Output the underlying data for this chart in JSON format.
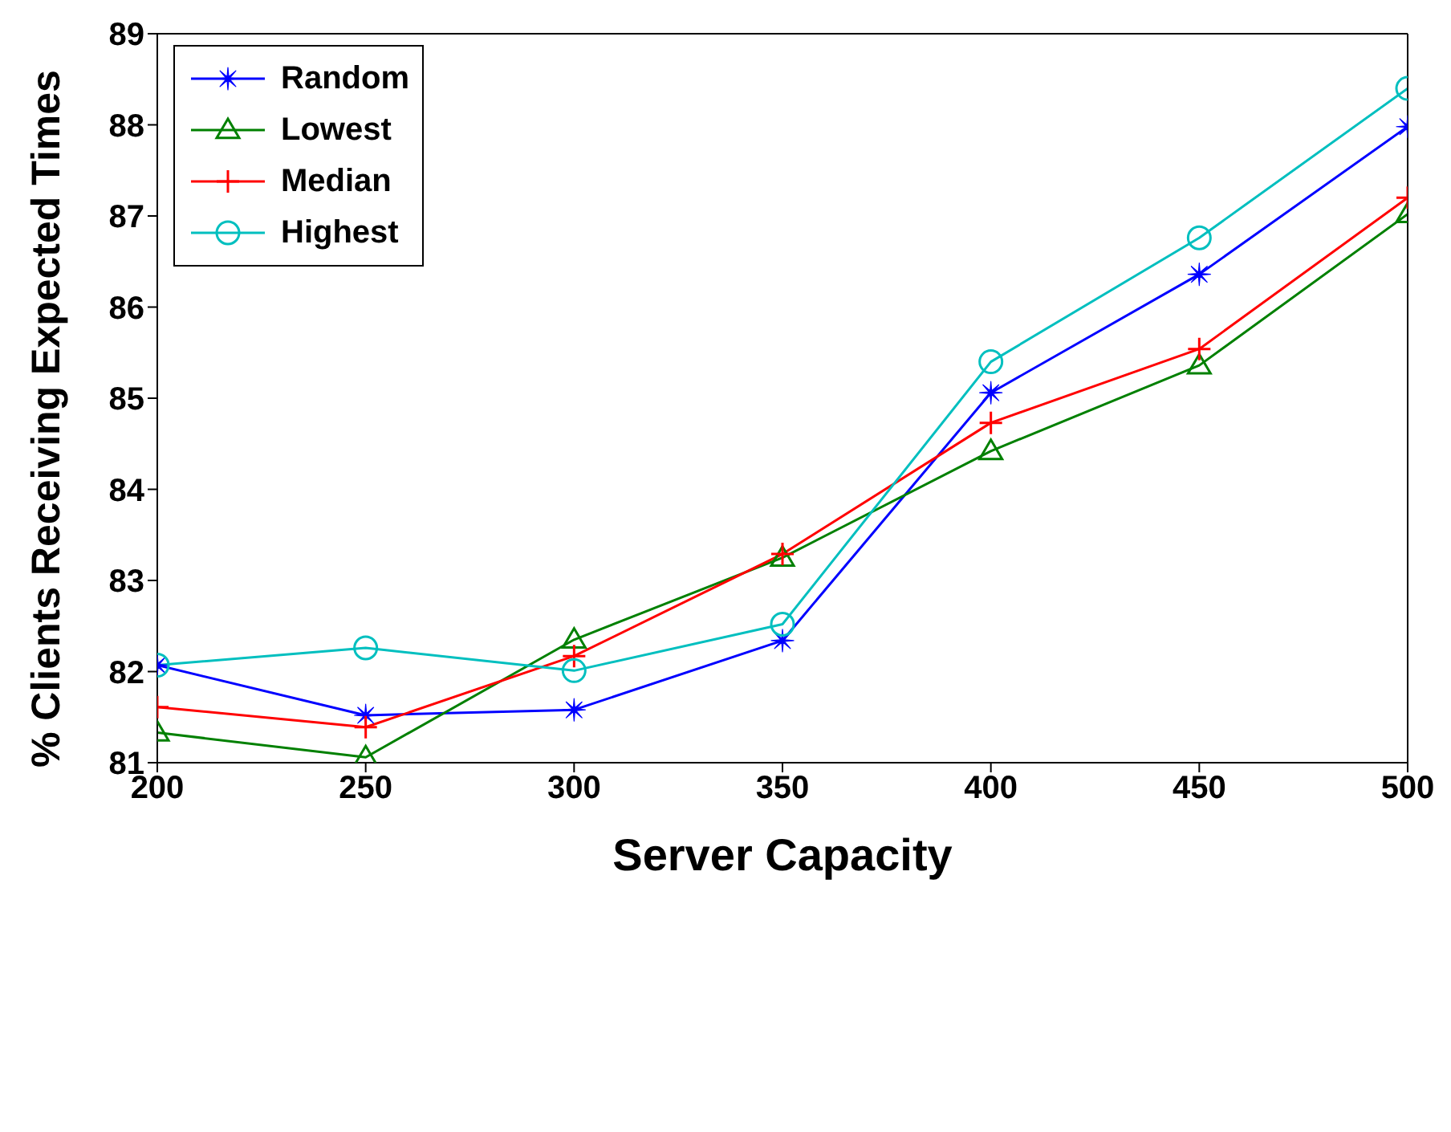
{
  "chart_data": {
    "type": "line",
    "xlabel": "Server Capacity",
    "ylabel": "% Clients Receiving Expected Times",
    "x": [
      200,
      250,
      300,
      350,
      400,
      450,
      500
    ],
    "xlim": [
      200,
      500
    ],
    "xticks": [
      200,
      250,
      300,
      350,
      400,
      450,
      500
    ],
    "ylim": [
      81,
      89
    ],
    "yticks": [
      81,
      82,
      83,
      84,
      85,
      86,
      87,
      88,
      89
    ],
    "grid": false,
    "legend": "top left",
    "line_style": "solid",
    "series": [
      {
        "name": "Random",
        "color": "#0000ff",
        "marker": "star",
        "values": [
          82.07,
          81.52,
          81.58,
          82.34,
          85.06,
          86.36,
          87.98
        ]
      },
      {
        "name": "Lowest",
        "color": "#008000",
        "marker": "triangle",
        "values": [
          81.33,
          81.06,
          82.35,
          83.25,
          84.42,
          85.36,
          87.02
        ]
      },
      {
        "name": "Median",
        "color": "#ff0000",
        "marker": "cross",
        "values": [
          81.61,
          81.39,
          82.17,
          83.29,
          84.73,
          85.54,
          87.2
        ]
      },
      {
        "name": "Highest",
        "color": "#00bfbf",
        "marker": "circle",
        "values": [
          82.07,
          82.26,
          82.01,
          82.52,
          85.4,
          86.76,
          88.4
        ]
      }
    ]
  }
}
